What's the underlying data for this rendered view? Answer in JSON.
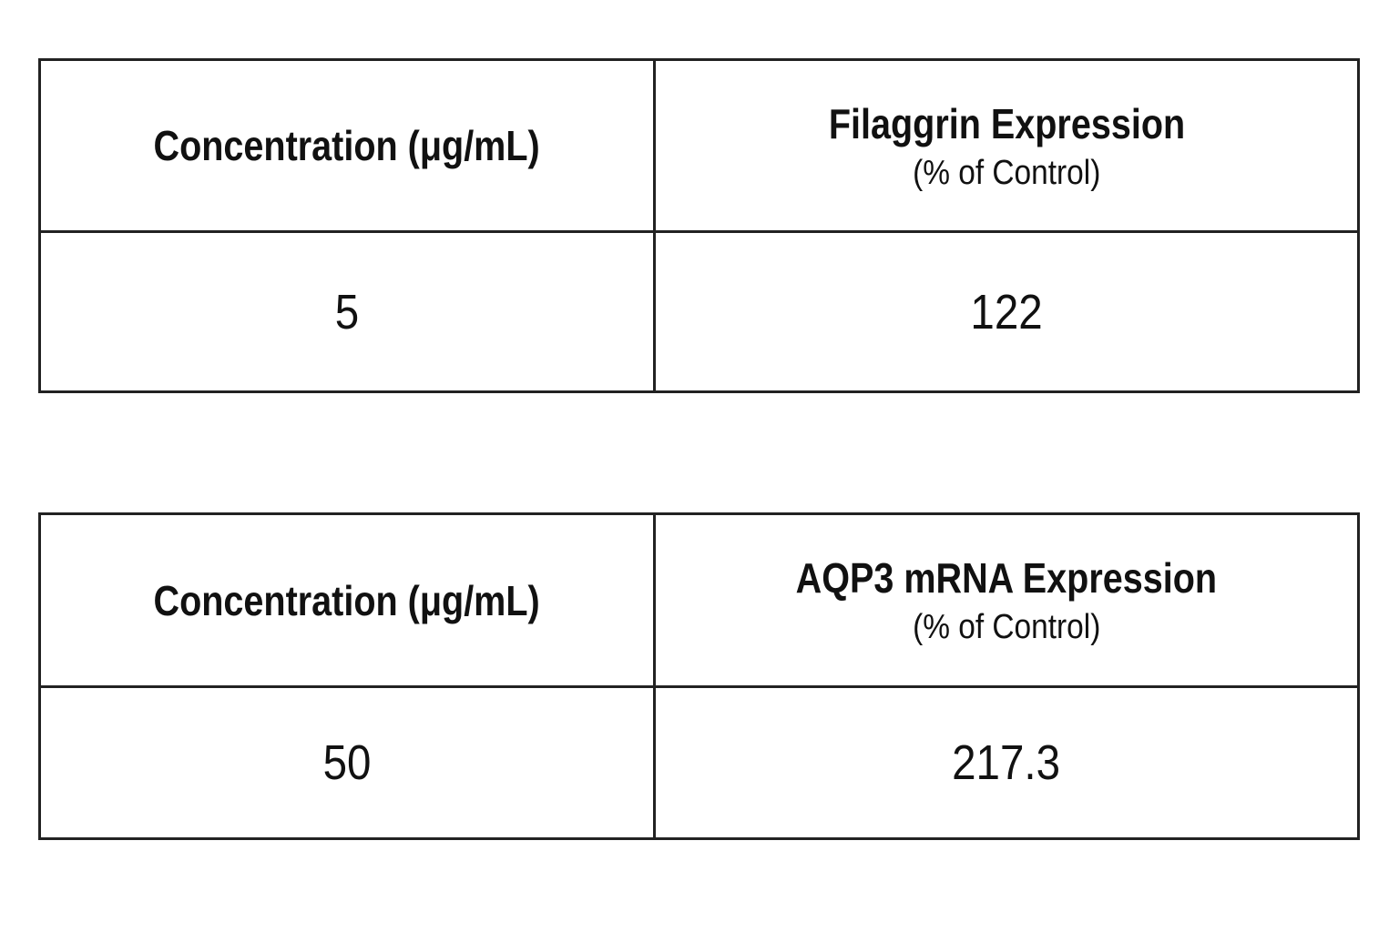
{
  "tables": [
    {
      "header": {
        "concentration": "Concentration (μg/mL)",
        "measure": "Filaggrin Expression",
        "unit": "(% of Control)"
      },
      "row": {
        "concentration": 5,
        "value": 122
      }
    },
    {
      "header": {
        "concentration": "Concentration (μg/mL)",
        "measure": "AQP3 mRNA Expression",
        "unit": "(% of Control)"
      },
      "row": {
        "concentration": 50,
        "value": 217.3
      }
    }
  ]
}
